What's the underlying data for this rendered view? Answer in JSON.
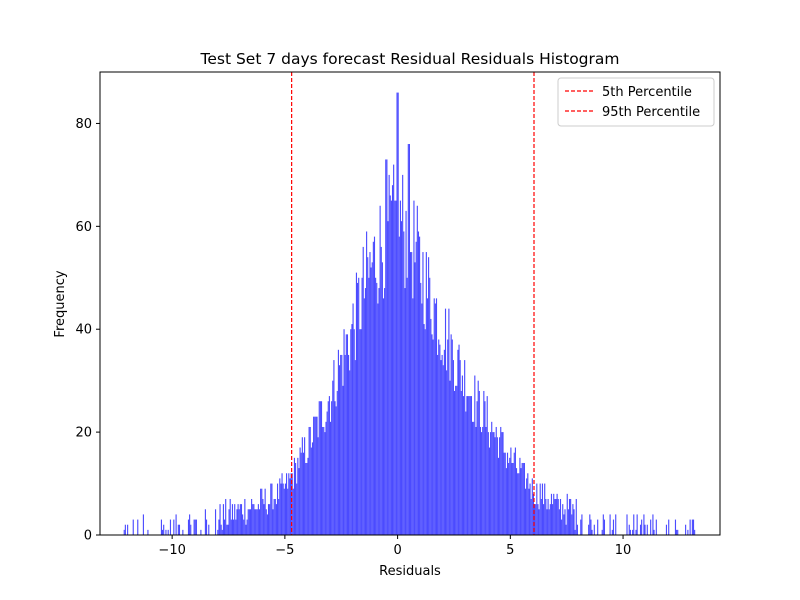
{
  "chart_data": {
    "type": "histogram",
    "title": "Test Set 7 days forecast Residual Residuals Histogram",
    "xlabel": "Residuals",
    "ylabel": "Frequency",
    "xlim": [
      -13.2,
      14.3
    ],
    "ylim": [
      0,
      90
    ],
    "xticks": [
      -10,
      -5,
      0,
      5,
      10
    ],
    "yticks": [
      0,
      20,
      40,
      60,
      80
    ],
    "bar_color": "#4b4bff",
    "bin_width": 0.05,
    "histogram_range": [
      -12.2,
      13.2
    ],
    "distribution_envelope": {
      "x": [
        -12.2,
        -10,
        -8,
        -7,
        -6,
        -5,
        -4,
        -3,
        -2,
        -1.5,
        -1,
        -0.5,
        0,
        0.5,
        1,
        1.5,
        2,
        3,
        4,
        5,
        6,
        7,
        8,
        9,
        10,
        11,
        12,
        13.2
      ],
      "frequency": [
        0.5,
        1,
        3,
        5,
        6,
        9,
        17,
        27,
        40,
        48,
        54,
        58,
        62,
        58,
        52,
        46,
        40,
        30,
        22,
        15,
        9,
        6,
        4,
        2.5,
        1.5,
        1,
        0.5,
        0.5
      ]
    },
    "notable_peaks": {
      "x": [
        0,
        -0.5,
        0.5
      ],
      "frequency": [
        86,
        73,
        76
      ]
    },
    "reference_lines": [
      {
        "name": "5th Percentile",
        "x": -4.7,
        "color": "#ff0000",
        "style": "dashed"
      },
      {
        "name": "95th Percentile",
        "x": 6.05,
        "color": "#ff0000",
        "style": "dashed"
      }
    ],
    "legend": {
      "position": "upper right",
      "entries": [
        "5th Percentile",
        "95th Percentile"
      ]
    },
    "grid": false
  }
}
